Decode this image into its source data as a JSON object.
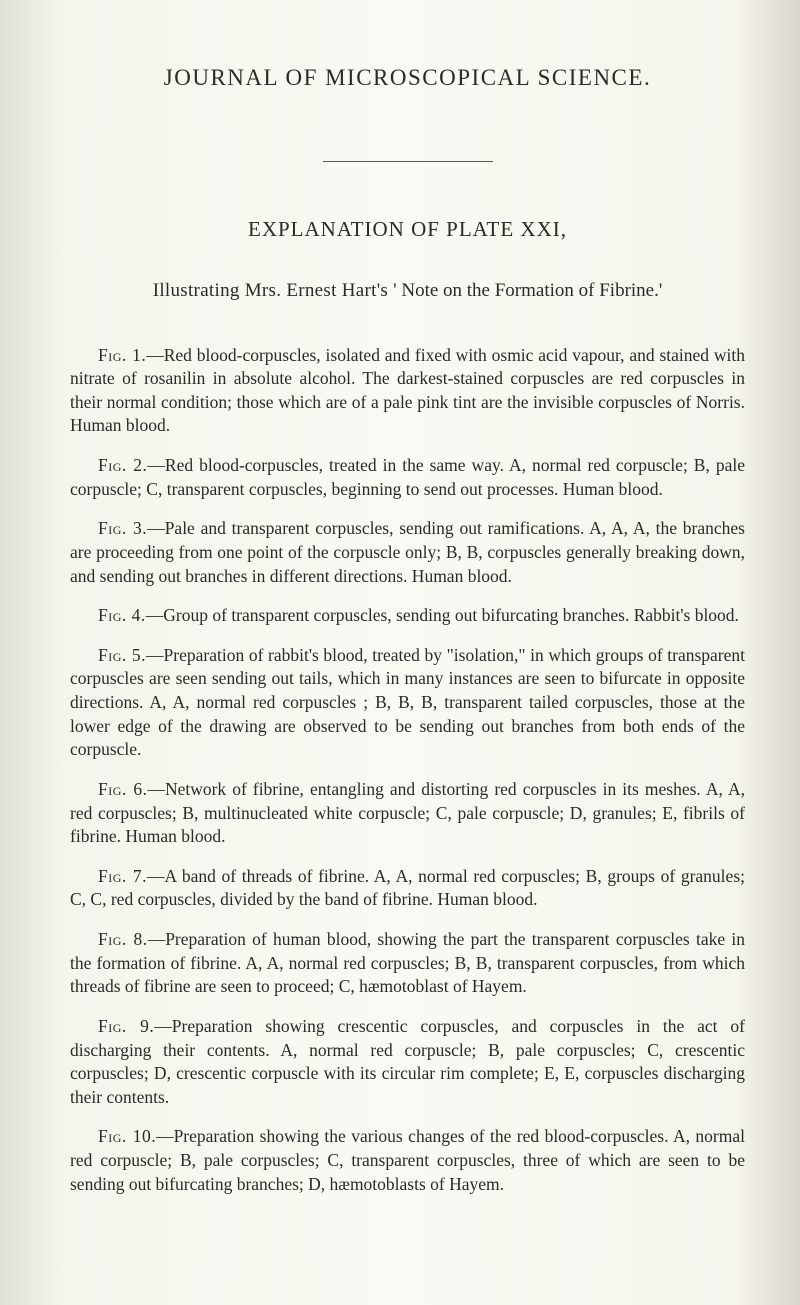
{
  "header": {
    "journal_title": "JOURNAL OF MICROSCOPICAL SCIENCE."
  },
  "explanation": {
    "heading": "EXPLANATION OF PLATE XXI,",
    "subtitle_prefix": "Illustrating Mrs. Ernest Hart's ",
    "subtitle_quoted": "' Note on the Formation of Fibrine.'"
  },
  "figures": [
    {
      "label": "Fig. 1.",
      "text": "—Red blood-corpuscles, isolated and fixed with osmic acid vapour, and stained with nitrate of rosanilin in absolute alcohol. The darkest-stained corpuscles are red corpuscles in their normal condition; those which are of a pale pink tint are the invisible corpuscles of Norris. Human blood."
    },
    {
      "label": "Fig. 2.",
      "text": "—Red blood-corpuscles, treated in the same way. A, normal red corpuscle; B, pale corpuscle; C, transparent corpuscles, beginning to send out processes. Human blood."
    },
    {
      "label": "Fig. 3.",
      "text": "—Pale and transparent corpuscles, sending out ramifications. A, A, A, the branches are proceeding from one point of the corpuscle only; B, B, corpuscles generally breaking down, and sending out branches in different directions. Human blood."
    },
    {
      "label": "Fig. 4.",
      "text": "—Group of transparent corpuscles, sending out bifurcating branches. Rabbit's blood."
    },
    {
      "label": "Fig. 5.",
      "text": "—Preparation of rabbit's blood, treated by \"isolation,\" in which groups of transparent corpuscles are seen sending out tails, which in many instances are seen to bifurcate in opposite directions. A, A, normal red corpuscles ; B, B, B, transparent tailed corpuscles, those at the lower edge of the drawing are observed to be sending out branches from both ends of the corpuscle."
    },
    {
      "label": "Fig. 6.",
      "text": "—Network of fibrine, entangling and distorting red corpuscles in its meshes. A, A, red corpuscles; B, multinucleated white corpuscle; C, pale corpuscle; D, granules; E, fibrils of fibrine. Human blood."
    },
    {
      "label": "Fig. 7.",
      "text": "—A band of threads of fibrine. A, A, normal red corpuscles; B, groups of granules; C, C, red corpuscles, divided by the band of fibrine. Human blood."
    },
    {
      "label": "Fig. 8.",
      "text": "—Preparation of human blood, showing the part the transparent corpuscles take in the formation of fibrine. A, A, normal red corpuscles; B, B, transparent corpuscles, from which threads of fibrine are seen to proceed; C, hæmotoblast of Hayem."
    },
    {
      "label": "Fig. 9.",
      "text": "—Preparation showing crescentic corpuscles, and corpuscles in the act of discharging their contents. A, normal red corpuscle; B, pale corpuscles; C, crescentic corpuscles; D, crescentic corpuscle with its circular rim complete; E, E, corpuscles discharging their contents."
    },
    {
      "label": "Fig. 10.",
      "text": "—Preparation showing the various changes of the red blood-corpuscles. A, normal red corpuscle; B, pale corpuscles; C, transparent corpuscles, three of which are seen to be sending out bifurcating branches; D, hæmotoblasts of Hayem."
    }
  ]
}
